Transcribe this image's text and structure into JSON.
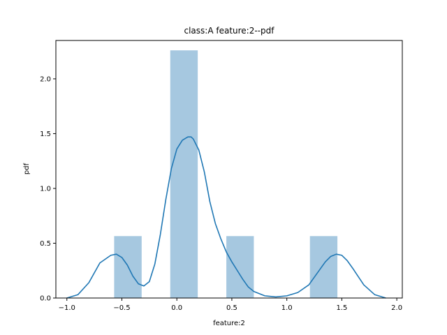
{
  "chart_data": {
    "type": "bar",
    "title": "class:A feature:2--pdf",
    "xlabel": "feature:2",
    "ylabel": "pdf",
    "xlim": [
      -1.1,
      2.05
    ],
    "ylim": [
      0,
      2.35
    ],
    "xticks": [
      -1.0,
      -0.5,
      0.0,
      0.5,
      1.0,
      1.5,
      2.0
    ],
    "xtick_labels": [
      "−1.0",
      "−0.5",
      "0.0",
      "0.5",
      "1.0",
      "1.5",
      "2.0"
    ],
    "yticks": [
      0.0,
      0.5,
      1.0,
      1.5,
      2.0
    ],
    "ytick_labels": [
      "0.0",
      "0.5",
      "1.0",
      "1.5",
      "2.0"
    ],
    "grid": false,
    "legend": "none",
    "colors": {
      "bar": "#a6c8e0",
      "line": "#1f77b4"
    },
    "histogram": {
      "bins": [
        {
          "x0": -0.57,
          "x1": -0.32,
          "value": 0.565
        },
        {
          "x0": -0.06,
          "x1": 0.19,
          "value": 2.26
        },
        {
          "x0": 0.45,
          "x1": 0.7,
          "value": 0.565
        },
        {
          "x0": 1.21,
          "x1": 1.46,
          "value": 0.565
        }
      ]
    },
    "kde": {
      "x": [
        -1.0,
        -0.9,
        -0.8,
        -0.7,
        -0.6,
        -0.55,
        -0.5,
        -0.45,
        -0.4,
        -0.35,
        -0.3,
        -0.25,
        -0.2,
        -0.15,
        -0.1,
        -0.05,
        0.0,
        0.05,
        0.1,
        0.13,
        0.15,
        0.2,
        0.25,
        0.3,
        0.35,
        0.4,
        0.45,
        0.5,
        0.55,
        0.6,
        0.65,
        0.7,
        0.8,
        0.9,
        1.0,
        1.1,
        1.2,
        1.3,
        1.35,
        1.4,
        1.45,
        1.5,
        1.55,
        1.6,
        1.7,
        1.8,
        1.9
      ],
      "y": [
        0.0,
        0.03,
        0.14,
        0.32,
        0.39,
        0.4,
        0.37,
        0.3,
        0.2,
        0.13,
        0.11,
        0.15,
        0.31,
        0.58,
        0.9,
        1.18,
        1.36,
        1.44,
        1.47,
        1.47,
        1.45,
        1.35,
        1.15,
        0.88,
        0.68,
        0.54,
        0.42,
        0.33,
        0.25,
        0.17,
        0.1,
        0.06,
        0.02,
        0.01,
        0.02,
        0.05,
        0.12,
        0.26,
        0.33,
        0.38,
        0.4,
        0.39,
        0.34,
        0.27,
        0.12,
        0.03,
        0.0
      ]
    }
  }
}
